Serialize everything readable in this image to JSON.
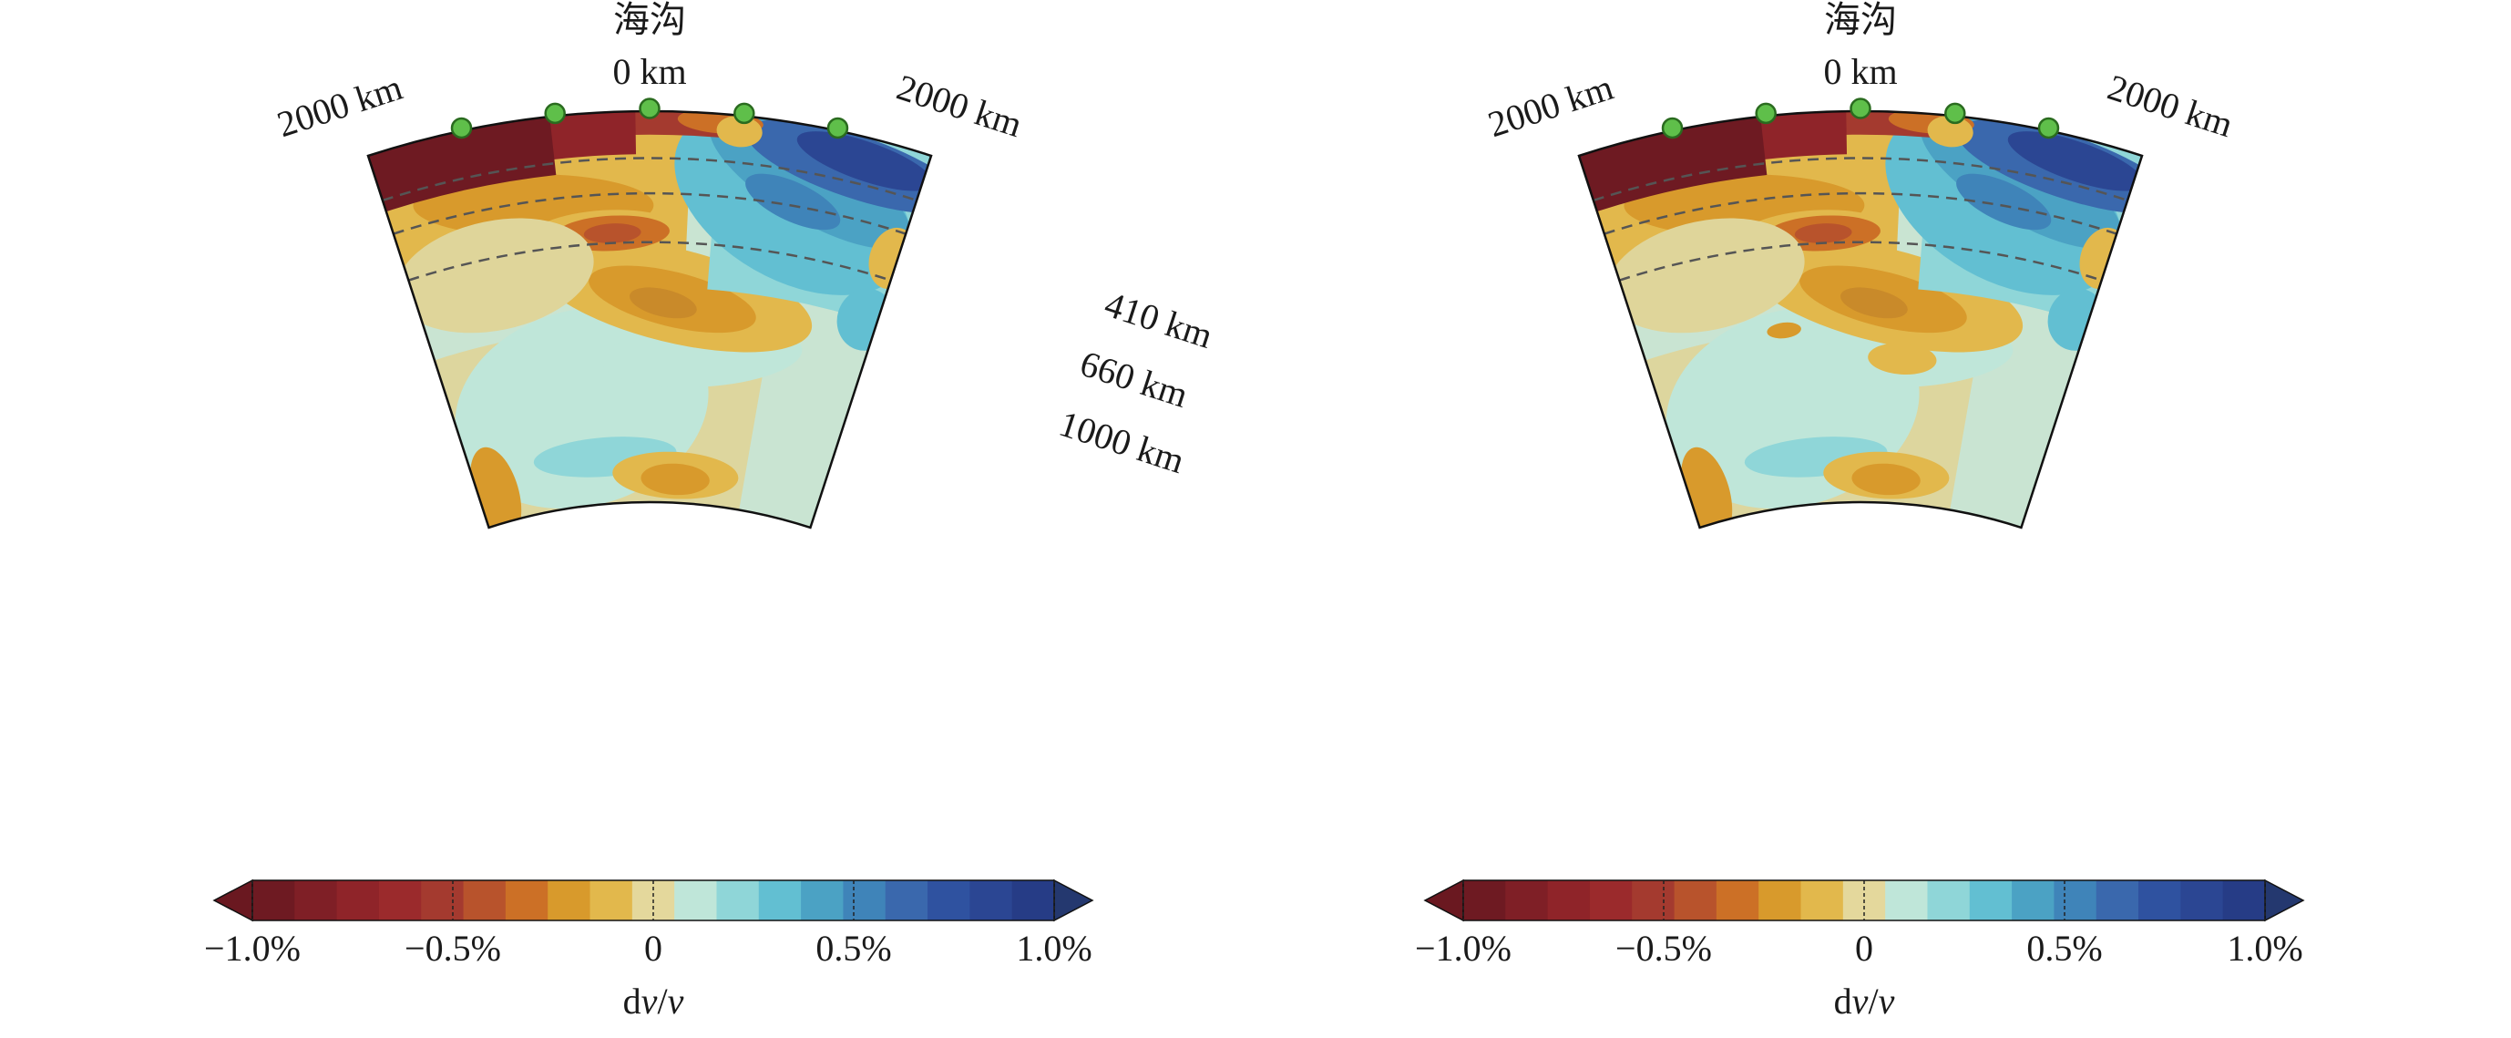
{
  "chart_data": [
    {
      "type": "heatmap",
      "panel": "left",
      "trench_label": "海沟",
      "center_label": "0 km",
      "left_distance_label": "2000 km",
      "right_distance_label": "2000 km",
      "depth_labels": [
        "410 km",
        "660 km",
        "1000 km"
      ],
      "depth_lines_km": [
        410,
        660,
        1000
      ],
      "colorbar": {
        "ticks": [
          "−1.0%",
          "−0.5%",
          "0",
          "0.5%",
          "1.0%"
        ],
        "range": [
          -1.0,
          1.0
        ],
        "title_prefix": "d",
        "title_var": "v",
        "title_sep": "/",
        "title_var2": "v"
      },
      "stations": 5
    },
    {
      "type": "heatmap",
      "panel": "right",
      "trench_label": "海沟",
      "center_label": "0 km",
      "left_distance_label": "2000 km",
      "right_distance_label": "2000 km",
      "depth_lines_km": [
        410,
        660,
        1000
      ],
      "colorbar": {
        "ticks": [
          "−1.0%",
          "−0.5%",
          "0",
          "0.5%",
          "1.0%"
        ],
        "range": [
          -1.0,
          1.0
        ],
        "title_prefix": "d",
        "title_var": "v",
        "title_sep": "/",
        "title_var2": "v"
      },
      "stations": 5
    }
  ],
  "palette": {
    "colorbar_colors": [
      "#6e1a22",
      "#7f1f26",
      "#8f2429",
      "#9b2a2c",
      "#a43a2f",
      "#b8532c",
      "#cc7026",
      "#d89a2c",
      "#e2b84c",
      "#e4d89c",
      "#bfe6d9",
      "#8fd6d8",
      "#62bfd2",
      "#4ba2c4",
      "#3f84b9",
      "#3a68ad",
      "#2f52a0",
      "#2b4693",
      "#263c86"
    ],
    "ends": [
      "#6a1820",
      "#24386f"
    ],
    "station_fill": "#5fbf4a",
    "station_stroke": "#2a6b1f",
    "depth_line": "#555555"
  }
}
